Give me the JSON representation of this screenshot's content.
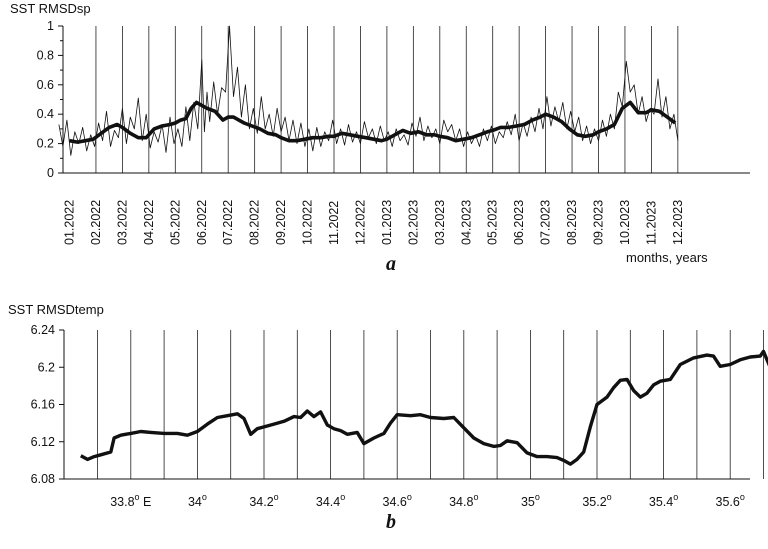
{
  "chart_data": [
    {
      "type": "line",
      "panel_label": "a",
      "ylabel": "SST RMSDsp",
      "xlabel": "months, years",
      "ylim": [
        0,
        1
      ],
      "yticks": [
        "0",
        "0.2",
        "0.4",
        "0.6",
        "0.8",
        "1"
      ],
      "x_categories": [
        "01.2022",
        "02.2022",
        "03.2022",
        "04.2022",
        "05.2022",
        "06.2022",
        "07.2022",
        "08.2022",
        "09.2022",
        "10.2022",
        "11.2022",
        "12.2022",
        "01.2023",
        "02.2023",
        "03.2023",
        "04.2023",
        "05.2023",
        "06.2023",
        "07.2023",
        "08.2023",
        "09.2023",
        "10.2023",
        "11.2023",
        "12.2023"
      ],
      "grid": "vertical",
      "series": [
        {
          "style": "thick",
          "x": [
            0.0,
            0.3,
            0.6,
            0.9,
            1.2,
            1.5,
            1.8,
            2.0,
            2.3,
            2.6,
            2.9,
            3.2,
            3.5,
            3.8,
            4.0,
            4.2,
            4.4,
            4.6,
            4.8,
            5.0,
            5.2,
            5.5,
            5.8,
            6.0,
            6.2,
            6.4,
            6.6,
            6.9,
            7.2,
            7.5,
            7.8,
            8.0,
            8.3,
            8.6,
            8.9,
            9.2,
            9.5,
            9.8,
            10.0,
            10.3,
            10.6,
            10.9,
            11.2,
            11.5,
            11.8,
            12.0,
            12.3,
            12.6,
            12.9,
            13.2,
            13.5,
            13.8,
            14.0,
            14.3,
            14.6,
            14.9,
            15.2,
            15.5,
            15.8,
            16.0,
            16.3,
            16.6,
            16.9,
            17.2,
            17.5,
            17.8,
            18.0,
            18.3,
            18.6,
            18.9,
            19.2,
            19.5,
            19.8,
            20.0,
            20.3,
            20.6,
            20.9,
            21.2,
            21.5,
            21.8,
            22.0,
            22.3,
            22.6,
            22.9
          ],
          "y": [
            0.22,
            0.21,
            0.22,
            0.23,
            0.27,
            0.31,
            0.33,
            0.31,
            0.27,
            0.24,
            0.24,
            0.3,
            0.32,
            0.33,
            0.34,
            0.36,
            0.37,
            0.44,
            0.48,
            0.46,
            0.44,
            0.42,
            0.36,
            0.38,
            0.38,
            0.36,
            0.34,
            0.32,
            0.3,
            0.27,
            0.26,
            0.24,
            0.22,
            0.22,
            0.23,
            0.24,
            0.24,
            0.25,
            0.25,
            0.27,
            0.26,
            0.25,
            0.24,
            0.23,
            0.22,
            0.23,
            0.26,
            0.29,
            0.27,
            0.28,
            0.26,
            0.26,
            0.25,
            0.24,
            0.22,
            0.23,
            0.24,
            0.26,
            0.28,
            0.29,
            0.31,
            0.31,
            0.32,
            0.33,
            0.36,
            0.38,
            0.4,
            0.38,
            0.35,
            0.3,
            0.26,
            0.25,
            0.26,
            0.28,
            0.3,
            0.33,
            0.44,
            0.48,
            0.41,
            0.41,
            0.43,
            0.42,
            0.38,
            0.34
          ]
        },
        {
          "style": "thin",
          "x": [
            -0.4,
            -0.25,
            -0.1,
            0.05,
            0.2,
            0.35,
            0.5,
            0.65,
            0.8,
            0.95,
            1.1,
            1.25,
            1.4,
            1.55,
            1.7,
            1.85,
            2.0,
            2.15,
            2.3,
            2.45,
            2.6,
            2.75,
            2.9,
            3.05,
            3.2,
            3.35,
            3.5,
            3.65,
            3.8,
            3.95,
            4.1,
            4.25,
            4.4,
            4.55,
            4.7,
            4.85,
            5.0,
            5.1,
            5.2,
            5.3,
            5.45,
            5.6,
            5.75,
            5.9,
            6.05,
            6.2,
            6.35,
            6.5,
            6.65,
            6.8,
            6.95,
            7.1,
            7.25,
            7.4,
            7.55,
            7.7,
            7.85,
            8.0,
            8.15,
            8.3,
            8.45,
            8.6,
            8.75,
            8.9,
            9.05,
            9.2,
            9.35,
            9.5,
            9.65,
            9.8,
            9.95,
            10.1,
            10.25,
            10.4,
            10.55,
            10.7,
            10.85,
            11.0,
            11.15,
            11.3,
            11.45,
            11.6,
            11.75,
            11.9,
            12.05,
            12.2,
            12.35,
            12.5,
            12.65,
            12.8,
            12.95,
            13.1,
            13.25,
            13.4,
            13.55,
            13.7,
            13.85,
            14.0,
            14.15,
            14.3,
            14.45,
            14.6,
            14.75,
            14.9,
            15.05,
            15.2,
            15.35,
            15.5,
            15.65,
            15.8,
            15.95,
            16.1,
            16.25,
            16.4,
            16.55,
            16.7,
            16.85,
            17.0,
            17.15,
            17.3,
            17.45,
            17.6,
            17.75,
            17.9,
            18.05,
            18.2,
            18.35,
            18.5,
            18.65,
            18.8,
            18.95,
            19.1,
            19.25,
            19.4,
            19.55,
            19.7,
            19.85,
            20.0,
            20.15,
            20.3,
            20.45,
            20.6,
            20.75,
            20.9,
            21.05,
            21.2,
            21.35,
            21.5,
            21.65,
            21.8,
            21.95,
            22.1,
            22.25,
            22.4,
            22.55,
            22.7,
            22.85,
            23.0
          ],
          "y": [
            0.33,
            0.18,
            0.36,
            0.12,
            0.28,
            0.2,
            0.31,
            0.15,
            0.26,
            0.18,
            0.34,
            0.22,
            0.42,
            0.18,
            0.29,
            0.24,
            0.44,
            0.2,
            0.38,
            0.3,
            0.51,
            0.22,
            0.4,
            0.17,
            0.28,
            0.21,
            0.33,
            0.14,
            0.38,
            0.2,
            0.3,
            0.18,
            0.45,
            0.22,
            0.48,
            0.3,
            0.77,
            0.28,
            0.55,
            0.35,
            0.62,
            0.4,
            0.58,
            0.55,
            1.0,
            0.52,
            0.72,
            0.38,
            0.6,
            0.3,
            0.44,
            0.27,
            0.52,
            0.3,
            0.4,
            0.25,
            0.44,
            0.28,
            0.38,
            0.22,
            0.36,
            0.2,
            0.34,
            0.18,
            0.3,
            0.15,
            0.31,
            0.18,
            0.28,
            0.22,
            0.36,
            0.2,
            0.3,
            0.19,
            0.33,
            0.21,
            0.28,
            0.2,
            0.35,
            0.24,
            0.3,
            0.2,
            0.32,
            0.22,
            0.28,
            0.18,
            0.3,
            0.22,
            0.26,
            0.19,
            0.34,
            0.25,
            0.38,
            0.22,
            0.32,
            0.24,
            0.3,
            0.2,
            0.36,
            0.28,
            0.33,
            0.22,
            0.3,
            0.18,
            0.28,
            0.2,
            0.26,
            0.18,
            0.3,
            0.22,
            0.32,
            0.2,
            0.28,
            0.24,
            0.35,
            0.26,
            0.4,
            0.22,
            0.34,
            0.25,
            0.38,
            0.28,
            0.44,
            0.3,
            0.52,
            0.32,
            0.45,
            0.35,
            0.48,
            0.3,
            0.42,
            0.28,
            0.38,
            0.22,
            0.32,
            0.2,
            0.3,
            0.22,
            0.36,
            0.25,
            0.4,
            0.3,
            0.55,
            0.45,
            0.76,
            0.55,
            0.6,
            0.4,
            0.52,
            0.35,
            0.44,
            0.4,
            0.64,
            0.38,
            0.52,
            0.3,
            0.4,
            0.22
          ]
        }
      ]
    },
    {
      "type": "line",
      "panel_label": "b",
      "ylabel": "SST RMSDtemp",
      "ylim": [
        6.08,
        6.24
      ],
      "yticks": [
        "6.08",
        "6.12",
        "6.16",
        "6.2",
        "6.24"
      ],
      "xlim": [
        33.62,
        35.88
      ],
      "xticks": [
        {
          "value": 33.8,
          "text": "33.8",
          "sup": "o",
          "suffix": " E"
        },
        {
          "value": 34.0,
          "text": "34",
          "sup": "o",
          "suffix": ""
        },
        {
          "value": 34.2,
          "text": "34.2",
          "sup": "o",
          "suffix": ""
        },
        {
          "value": 34.4,
          "text": "34.4",
          "sup": "o",
          "suffix": ""
        },
        {
          "value": 34.6,
          "text": "34.6",
          "sup": "o",
          "suffix": ""
        },
        {
          "value": 34.8,
          "text": "34.8",
          "sup": "o",
          "suffix": ""
        },
        {
          "value": 35.0,
          "text": "35",
          "sup": "o",
          "suffix": ""
        },
        {
          "value": 35.2,
          "text": "35.2",
          "sup": "o",
          "suffix": ""
        },
        {
          "value": 35.4,
          "text": "35.4",
          "sup": "o",
          "suffix": ""
        },
        {
          "value": 35.6,
          "text": "35.6",
          "sup": "o",
          "suffix": ""
        },
        {
          "value": 35.8,
          "text": "35.8",
          "sup": "o",
          "suffix": ""
        }
      ],
      "grid": "vertical",
      "series": [
        {
          "style": "thick",
          "x": [
            33.65,
            33.67,
            33.69,
            33.71,
            33.74,
            33.75,
            33.77,
            33.8,
            33.83,
            33.86,
            33.9,
            33.94,
            33.97,
            34.0,
            34.03,
            34.06,
            34.09,
            34.12,
            34.14,
            34.16,
            34.18,
            34.2,
            34.23,
            34.26,
            34.29,
            34.31,
            34.33,
            34.35,
            34.37,
            34.39,
            34.41,
            34.43,
            34.45,
            34.48,
            34.5,
            34.53,
            34.56,
            34.58,
            34.6,
            34.64,
            34.67,
            34.7,
            34.74,
            34.77,
            34.8,
            34.83,
            34.86,
            34.89,
            34.91,
            34.93,
            34.96,
            34.99,
            35.02,
            35.05,
            35.08,
            35.1,
            35.12,
            35.14,
            35.16,
            35.18,
            35.2,
            35.23,
            35.25,
            35.27,
            35.29,
            35.31,
            35.33,
            35.35,
            35.37,
            35.39,
            35.42,
            35.45,
            35.49,
            35.53,
            35.55,
            35.57,
            35.6,
            35.63,
            35.66,
            35.69,
            35.7,
            35.72,
            35.74,
            35.75,
            35.77,
            35.79,
            35.81,
            35.83
          ],
          "y": [
            6.105,
            6.101,
            6.104,
            6.106,
            6.109,
            6.124,
            6.127,
            6.129,
            6.131,
            6.13,
            6.129,
            6.129,
            6.127,
            6.131,
            6.139,
            6.146,
            6.148,
            6.15,
            6.145,
            6.128,
            6.134,
            6.136,
            6.139,
            6.142,
            6.147,
            6.146,
            6.153,
            6.147,
            6.152,
            6.138,
            6.134,
            6.132,
            6.128,
            6.13,
            6.118,
            6.124,
            6.129,
            6.14,
            6.149,
            6.148,
            6.149,
            6.146,
            6.145,
            6.146,
            6.135,
            6.124,
            6.118,
            6.115,
            6.116,
            6.121,
            6.119,
            6.108,
            6.104,
            6.104,
            6.103,
            6.1,
            6.096,
            6.101,
            6.109,
            6.136,
            6.16,
            6.168,
            6.178,
            6.186,
            6.187,
            6.175,
            6.168,
            6.172,
            6.181,
            6.185,
            6.187,
            6.203,
            6.21,
            6.213,
            6.212,
            6.201,
            6.203,
            6.208,
            6.211,
            6.212,
            6.217,
            6.2,
            6.186,
            6.183,
            6.172,
            6.177,
            6.174,
            6.172
          ]
        }
      ]
    }
  ]
}
